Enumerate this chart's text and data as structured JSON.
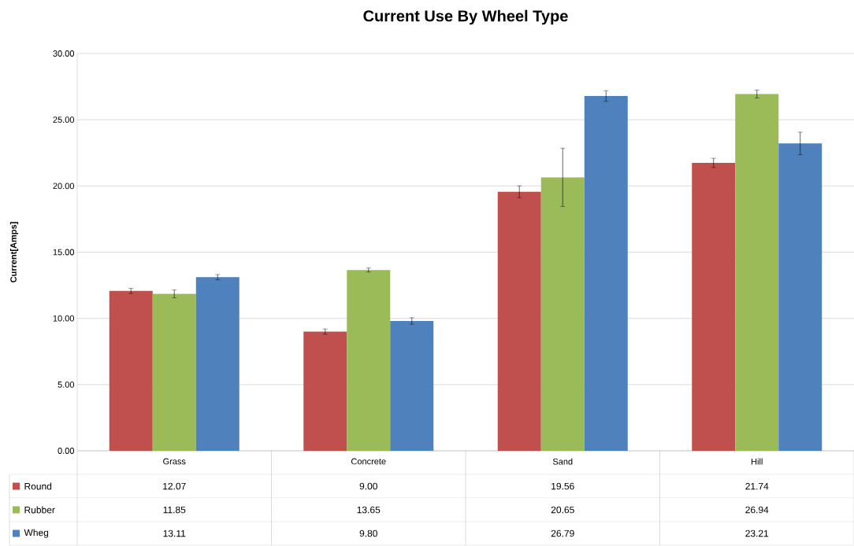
{
  "chart_data": {
    "type": "bar",
    "title": "Current Use By Wheel Type",
    "ylabel": "Current[Amps]",
    "categories": [
      "Grass",
      "Concrete",
      "Sand",
      "Hill"
    ],
    "series": [
      {
        "name": "Round",
        "color": "#c0504d",
        "values": [
          12.07,
          9.0,
          19.56,
          21.74
        ],
        "errors": [
          0.2,
          0.2,
          0.45,
          0.35
        ],
        "value_labels": [
          "12.07",
          "9.00",
          "19.56",
          "21.74"
        ]
      },
      {
        "name": "Rubber",
        "color": "#9bbb59",
        "values": [
          11.85,
          13.65,
          20.65,
          26.94
        ],
        "errors": [
          0.3,
          0.15,
          2.2,
          0.3
        ],
        "value_labels": [
          "11.85",
          "13.65",
          "20.65",
          "26.94"
        ]
      },
      {
        "name": "Wheg",
        "color": "#4f81bd",
        "values": [
          13.11,
          9.8,
          26.79,
          23.21
        ],
        "errors": [
          0.2,
          0.25,
          0.4,
          0.85
        ],
        "value_labels": [
          "13.11",
          "9.80",
          "26.79",
          "23.21"
        ]
      }
    ],
    "ylim": [
      0,
      30
    ],
    "yticks": [
      {
        "value": 0,
        "label": "0.00"
      },
      {
        "value": 5,
        "label": "5.00"
      },
      {
        "value": 10,
        "label": "10.00"
      },
      {
        "value": 15,
        "label": "15.00"
      },
      {
        "value": 20,
        "label": "20.00"
      },
      {
        "value": 25,
        "label": "25.00"
      },
      {
        "value": 30,
        "label": "30.00"
      }
    ],
    "grid": "y",
    "legend": "bottom left"
  }
}
